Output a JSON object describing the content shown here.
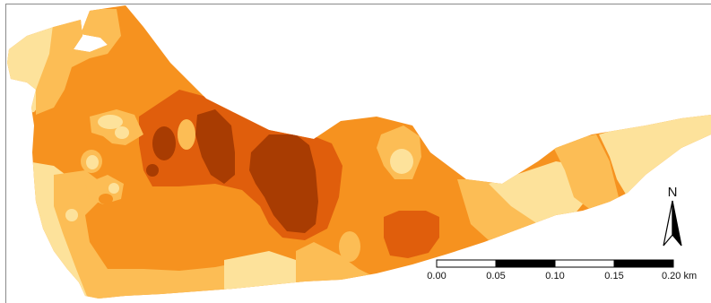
{
  "map": {
    "colors": {
      "class1": "#fde29b",
      "class2": "#fcbd55",
      "class3": "#f6921f",
      "class4": "#e05e0c",
      "class5": "#a83c02",
      "background": "#ffffff",
      "frame": "#8a8a8a"
    }
  },
  "north_arrow": {
    "label": "N",
    "icon": "north-arrow-icon"
  },
  "scale_bar": {
    "ticks": [
      "0.00",
      "0.05",
      "0.10",
      "0.15",
      "0.20 km"
    ]
  }
}
